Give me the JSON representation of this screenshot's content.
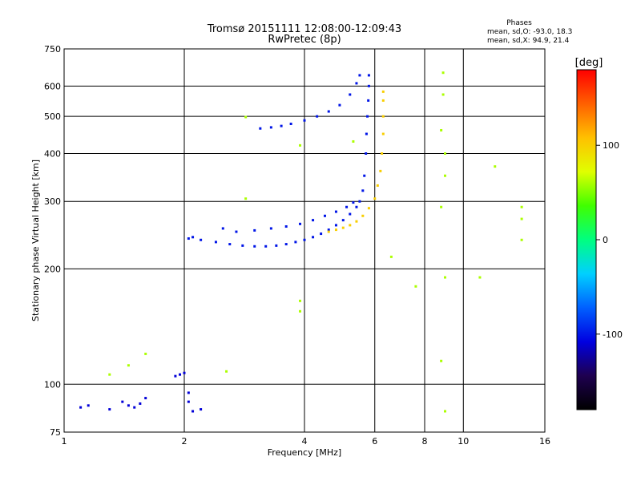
{
  "chart_data": {
    "type": "scatter",
    "title": "Tromsø 20151111 12:08:00-12:09:43",
    "subtitle": "RwPretec (8p)",
    "xlabel": "Frequency [MHz]",
    "ylabel": "Stationary phase Virtual Height [km]",
    "x_scale": "log",
    "y_scale": "log",
    "xlim": [
      1,
      16
    ],
    "ylim": [
      75,
      750
    ],
    "x_ticks": [
      1,
      2,
      4,
      6,
      8,
      10,
      16
    ],
    "y_ticks": [
      75,
      100,
      200,
      300,
      400,
      500,
      600,
      750
    ],
    "grid": true,
    "phases_box": {
      "title": "Phases",
      "line_o": "mean, sd,O: -93.0, 18.3",
      "line_x": "mean, sd,X:  94.9, 21.4"
    },
    "colorbar": {
      "label": "[deg]",
      "range": [
        -180,
        180
      ],
      "ticks": [
        100,
        0,
        -100
      ],
      "colors": [
        "#000000",
        "#1e0050",
        "#0000e0",
        "#0060ff",
        "#00d0ff",
        "#00ff80",
        "#40ff00",
        "#e0ff00",
        "#ffc000",
        "#ff6000",
        "#ff0000"
      ]
    },
    "series": [
      {
        "description": "O-mode trace (phase about -100 deg)",
        "phase": -100,
        "points": [
          [
            2.05,
            240
          ],
          [
            2.1,
            242
          ],
          [
            2.2,
            238
          ],
          [
            2.4,
            235
          ],
          [
            2.6,
            232
          ],
          [
            2.8,
            230
          ],
          [
            3.0,
            229
          ],
          [
            3.2,
            229
          ],
          [
            3.4,
            230
          ],
          [
            3.6,
            232
          ],
          [
            3.8,
            235
          ],
          [
            4.0,
            238
          ],
          [
            4.2,
            242
          ],
          [
            4.4,
            247
          ],
          [
            4.6,
            253
          ],
          [
            4.8,
            260
          ],
          [
            5.0,
            268
          ],
          [
            5.2,
            278
          ],
          [
            5.4,
            290
          ],
          [
            5.5,
            300
          ],
          [
            5.6,
            320
          ],
          [
            5.65,
            350
          ],
          [
            5.7,
            400
          ],
          [
            5.72,
            450
          ],
          [
            5.75,
            500
          ],
          [
            5.78,
            550
          ],
          [
            5.8,
            600
          ],
          [
            5.8,
            640
          ],
          [
            2.5,
            255
          ],
          [
            2.7,
            250
          ],
          [
            3.0,
            252
          ],
          [
            3.3,
            255
          ],
          [
            3.6,
            258
          ],
          [
            3.9,
            262
          ],
          [
            4.2,
            268
          ],
          [
            4.5,
            275
          ],
          [
            4.8,
            282
          ],
          [
            5.1,
            290
          ],
          [
            5.3,
            298
          ],
          [
            3.1,
            465
          ],
          [
            3.3,
            468
          ],
          [
            3.5,
            472
          ],
          [
            3.7,
            478
          ],
          [
            4.0,
            488
          ],
          [
            4.3,
            500
          ],
          [
            4.6,
            515
          ],
          [
            4.9,
            535
          ],
          [
            5.2,
            570
          ],
          [
            5.4,
            610
          ],
          [
            5.5,
            640
          ]
        ]
      },
      {
        "description": "X-mode trace (phase about +100 deg)",
        "phase": 100,
        "points": [
          [
            4.6,
            250
          ],
          [
            4.8,
            253
          ],
          [
            5.0,
            256
          ],
          [
            5.2,
            260
          ],
          [
            5.4,
            266
          ],
          [
            5.6,
            275
          ],
          [
            5.8,
            288
          ],
          [
            6.0,
            305
          ],
          [
            6.1,
            330
          ],
          [
            6.2,
            360
          ],
          [
            6.25,
            400
          ],
          [
            6.3,
            450
          ],
          [
            6.3,
            500
          ],
          [
            6.3,
            550
          ],
          [
            6.3,
            580
          ]
        ]
      },
      {
        "description": "Low-altitude E-region echoes",
        "phase": -110,
        "points": [
          [
            1.1,
            87
          ],
          [
            1.15,
            88
          ],
          [
            1.3,
            86
          ],
          [
            1.4,
            90
          ],
          [
            1.45,
            88
          ],
          [
            1.5,
            87
          ],
          [
            1.55,
            89
          ],
          [
            1.6,
            92
          ],
          [
            1.9,
            105
          ],
          [
            1.95,
            106
          ],
          [
            2.0,
            107
          ],
          [
            2.05,
            95
          ],
          [
            2.05,
            90
          ],
          [
            2.1,
            85
          ],
          [
            2.2,
            86
          ]
        ]
      },
      {
        "description": "Scattered isolated echoes",
        "phase": 60,
        "points": [
          [
            1.3,
            106
          ],
          [
            1.45,
            112
          ],
          [
            1.6,
            120
          ],
          [
            2.55,
            108
          ],
          [
            2.85,
            305
          ],
          [
            2.85,
            498
          ],
          [
            3.9,
            420
          ],
          [
            3.9,
            165
          ],
          [
            3.9,
            155
          ],
          [
            5.3,
            430
          ],
          [
            6.6,
            215
          ],
          [
            7.6,
            180
          ],
          [
            8.8,
            460
          ],
          [
            8.9,
            650
          ],
          [
            8.9,
            570
          ],
          [
            9.0,
            400
          ],
          [
            9.0,
            350
          ],
          [
            9.0,
            190
          ],
          [
            9.0,
            85
          ],
          [
            8.8,
            115
          ],
          [
            8.8,
            290
          ],
          [
            11.0,
            190
          ],
          [
            12.0,
            370
          ],
          [
            14.0,
            290
          ],
          [
            14.0,
            270
          ],
          [
            14.0,
            238
          ]
        ]
      }
    ]
  }
}
